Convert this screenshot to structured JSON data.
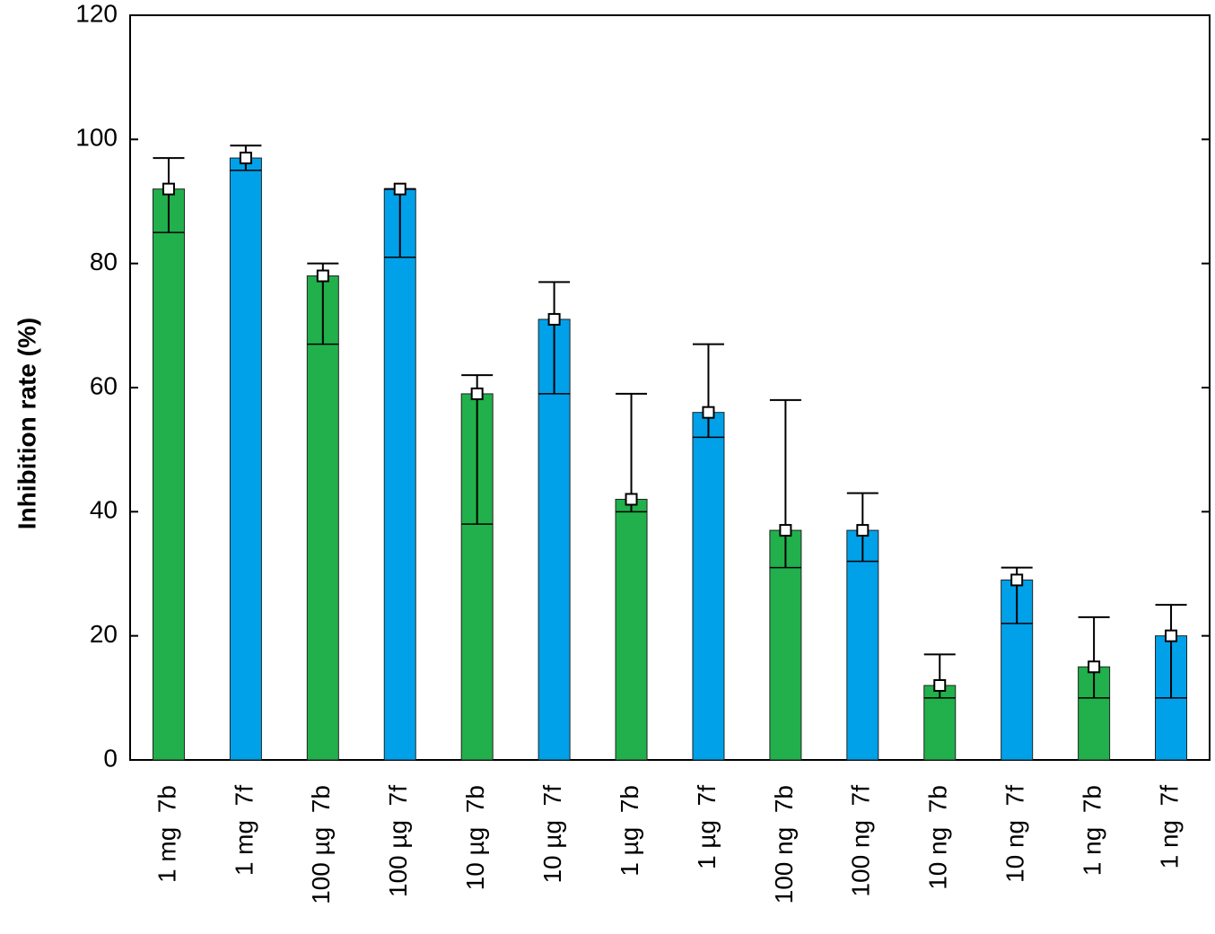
{
  "chart_data": {
    "type": "bar",
    "y_label": "Inhibition rate (%)",
    "categories": [
      "1 mg  7b",
      "1 mg  7f",
      "100 µg  7b",
      "100 µg  7f",
      "10 µg  7b",
      "10 µg  7f",
      "1 µg  7b",
      "1 µg  7f",
      "100 ng  7b",
      "100 ng  7f",
      "10 ng  7b",
      "10 ng  7f",
      "1 ng  7b",
      "1 ng  7f"
    ],
    "values": [
      92,
      97,
      78,
      92,
      59,
      71,
      42,
      56,
      37,
      37,
      12,
      29,
      15,
      20
    ],
    "lower": [
      85,
      95,
      67,
      81,
      38,
      59,
      40,
      52,
      31,
      32,
      10,
      22,
      10,
      10
    ],
    "upper": [
      97,
      99,
      80,
      92,
      62,
      77,
      59,
      67,
      58,
      43,
      17,
      31,
      23,
      25
    ],
    "colors": [
      "#21b04b",
      "#00a1e9",
      "#21b04b",
      "#00a1e9",
      "#21b04b",
      "#00a1e9",
      "#21b04b",
      "#00a1e9",
      "#21b04b",
      "#00a1e9",
      "#21b04b",
      "#00a1e9",
      "#21b04b",
      "#00a1e9"
    ],
    "ylim": [
      0,
      120
    ],
    "yticks": [
      0,
      20,
      40,
      60,
      80,
      100,
      120
    ],
    "grid": false
  }
}
